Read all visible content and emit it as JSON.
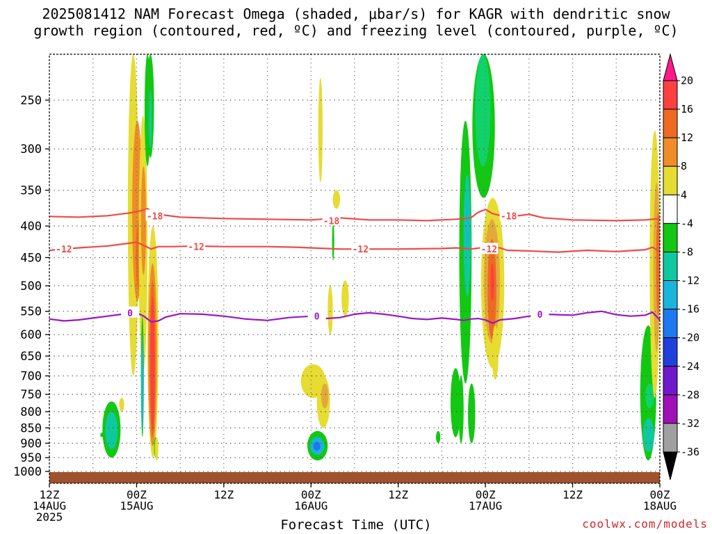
{
  "title": {
    "line1": "2025081412 NAM Forecast Omega (shaded, μbar/s) for KAGR with dendritic snow",
    "line2": "growth region (contoured, red, ºC) and freezing level (contoured, purple, ºC)"
  },
  "credit": "coolwx.com/models",
  "chart_data": {
    "type": "heatmap",
    "xlabel": "Forecast Time (UTC)",
    "ylabel": "",
    "x_ticks": [
      {
        "hour": 0,
        "label1": "12Z",
        "label2": "14AUG",
        "label3": "2025"
      },
      {
        "hour": 12,
        "label1": "00Z",
        "label2": "15AUG",
        "label3": ""
      },
      {
        "hour": 24,
        "label1": "12Z",
        "label2": "",
        "label3": ""
      },
      {
        "hour": 36,
        "label1": "00Z",
        "label2": "16AUG",
        "label3": ""
      },
      {
        "hour": 48,
        "label1": "12Z",
        "label2": "",
        "label3": ""
      },
      {
        "hour": 60,
        "label1": "00Z",
        "label2": "17AUG",
        "label3": ""
      },
      {
        "hour": 72,
        "label1": "12Z",
        "label2": "",
        "label3": ""
      },
      {
        "hour": 84,
        "label1": "00Z",
        "label2": "18AUG",
        "label3": ""
      }
    ],
    "xlim_hours": [
      0,
      84
    ],
    "y_ticks_hPa": [
      250,
      300,
      350,
      400,
      450,
      500,
      550,
      600,
      650,
      700,
      750,
      800,
      850,
      900,
      950,
      1000
    ],
    "ylim_hPa": [
      200,
      1020
    ],
    "y_scale": "log",
    "grid": true,
    "colorbar": {
      "labels": [
        "20",
        "16",
        "12",
        "8",
        "4",
        "-4",
        "-8",
        "-12",
        "-16",
        "-20",
        "-24",
        "-28",
        "-32",
        "-36"
      ],
      "colors": [
        "#ff1a8c",
        "#ff4040",
        "#ee6a20",
        "#f08c28",
        "#e3a83a",
        "#e6dc32",
        "#ffffff",
        "#12c812",
        "#10d26a",
        "#10c8a0",
        "#1ab4dc",
        "#1e78f0",
        "#2040dc",
        "#7018cc",
        "#a010b8",
        "#a0a0a0",
        "#000000"
      ]
    },
    "contour_labels": {
      "dgz_upper": "-18",
      "dgz_lower": "-12",
      "freezing": "0"
    },
    "dgz_upper_line": [
      [
        0,
        386
      ],
      [
        4,
        387
      ],
      [
        8,
        385
      ],
      [
        11,
        381
      ],
      [
        12.5,
        378
      ],
      [
        13.5,
        375
      ],
      [
        15,
        383
      ],
      [
        18,
        387
      ],
      [
        24,
        389
      ],
      [
        30,
        390
      ],
      [
        36,
        391
      ],
      [
        40,
        388
      ],
      [
        44,
        391
      ],
      [
        48,
        391
      ],
      [
        52,
        392
      ],
      [
        56,
        390
      ],
      [
        58,
        388
      ],
      [
        59,
        380
      ],
      [
        60,
        376
      ],
      [
        61,
        382
      ],
      [
        63,
        387
      ],
      [
        66,
        383
      ],
      [
        68,
        388
      ],
      [
        72,
        391
      ],
      [
        78,
        392
      ],
      [
        82,
        391
      ],
      [
        84,
        389
      ]
    ],
    "dgz_lower_line": [
      [
        0,
        438
      ],
      [
        2,
        436
      ],
      [
        4,
        434
      ],
      [
        8,
        431
      ],
      [
        10,
        428
      ],
      [
        12,
        425
      ],
      [
        13,
        430
      ],
      [
        14,
        436
      ],
      [
        15,
        432
      ],
      [
        17,
        432
      ],
      [
        20,
        431
      ],
      [
        24,
        432
      ],
      [
        30,
        432
      ],
      [
        34,
        433
      ],
      [
        36,
        434
      ],
      [
        40,
        436
      ],
      [
        44,
        436
      ],
      [
        48,
        436
      ],
      [
        54,
        435
      ],
      [
        56,
        434
      ],
      [
        58,
        436
      ],
      [
        60,
        433
      ],
      [
        62,
        434
      ],
      [
        63,
        438
      ],
      [
        66,
        439
      ],
      [
        70,
        441
      ],
      [
        74,
        438
      ],
      [
        78,
        440
      ],
      [
        82,
        437
      ],
      [
        83,
        433
      ],
      [
        84,
        440
      ]
    ],
    "freezing_line": [
      [
        0,
        566
      ],
      [
        2,
        570
      ],
      [
        4,
        568
      ],
      [
        6,
        564
      ],
      [
        8,
        560
      ],
      [
        10,
        556
      ],
      [
        12,
        553
      ],
      [
        13,
        560
      ],
      [
        14,
        572
      ],
      [
        15,
        570
      ],
      [
        16,
        562
      ],
      [
        18,
        555
      ],
      [
        21,
        556
      ],
      [
        24,
        560
      ],
      [
        27,
        566
      ],
      [
        30,
        569
      ],
      [
        33,
        563
      ],
      [
        36,
        560
      ],
      [
        38,
        565
      ],
      [
        40,
        563
      ],
      [
        42,
        556
      ],
      [
        44,
        553
      ],
      [
        46,
        556
      ],
      [
        48,
        560
      ],
      [
        50,
        565
      ],
      [
        52,
        567
      ],
      [
        54,
        564
      ],
      [
        56,
        567
      ],
      [
        57,
        569
      ],
      [
        58,
        566
      ],
      [
        59,
        565
      ],
      [
        60,
        568
      ],
      [
        61,
        575
      ],
      [
        62,
        568
      ],
      [
        64,
        565
      ],
      [
        66,
        560
      ],
      [
        68,
        556
      ],
      [
        70,
        557
      ],
      [
        72,
        558
      ],
      [
        74,
        553
      ],
      [
        76,
        550
      ],
      [
        78,
        557
      ],
      [
        80,
        560
      ],
      [
        82,
        558
      ],
      [
        83,
        552
      ],
      [
        84,
        568
      ]
    ],
    "omega_cells": [
      {
        "x0": 10.8,
        "x1": 12.3,
        "p0": 200,
        "p1": 700,
        "value": 6
      },
      {
        "x0": 11.4,
        "x1": 12.8,
        "p0": 270,
        "p1": 530,
        "value": 10
      },
      {
        "x0": 11.9,
        "x1": 12.9,
        "p0": 390,
        "p1": 510,
        "value": 13
      },
      {
        "x0": 12.3,
        "x1": 13.5,
        "p0": 265,
        "p1": 690,
        "value": 6
      },
      {
        "x0": 12.6,
        "x1": 13.3,
        "p0": 320,
        "p1": 480,
        "value": 11
      },
      {
        "x0": 13.1,
        "x1": 13.9,
        "p0": 200,
        "p1": 320,
        "value": -6
      },
      {
        "x0": 13.4,
        "x1": 14.4,
        "p0": 200,
        "p1": 310,
        "value": -7
      },
      {
        "x0": 13.7,
        "x1": 14.1,
        "p0": 240,
        "p1": 300,
        "value": -10
      },
      {
        "x0": 13.5,
        "x1": 15.0,
        "p0": 400,
        "p1": 950,
        "value": 6
      },
      {
        "x0": 13.6,
        "x1": 14.8,
        "p0": 460,
        "p1": 910,
        "value": 10
      },
      {
        "x0": 13.8,
        "x1": 14.6,
        "p0": 490,
        "p1": 880,
        "value": 14
      },
      {
        "x0": 13.9,
        "x1": 14.5,
        "p0": 520,
        "p1": 860,
        "value": 18
      },
      {
        "x0": 12.6,
        "x1": 13.0,
        "p0": 560,
        "p1": 880,
        "value": -6
      },
      {
        "x0": 12.7,
        "x1": 12.9,
        "p0": 600,
        "p1": 860,
        "value": -12
      },
      {
        "x0": 14.4,
        "x1": 14.8,
        "p0": 880,
        "p1": 950,
        "value": -6
      },
      {
        "x0": 7.3,
        "x1": 9.8,
        "p0": 770,
        "p1": 950,
        "value": -6
      },
      {
        "x0": 7.7,
        "x1": 9.4,
        "p0": 800,
        "p1": 920,
        "value": -10
      },
      {
        "x0": 7.0,
        "x1": 7.6,
        "p0": 865,
        "p1": 880,
        "value": -6
      },
      {
        "x0": 9.6,
        "x1": 10.3,
        "p0": 760,
        "p1": 800,
        "value": 5
      },
      {
        "x0": 14.5,
        "x1": 15.0,
        "p0": 880,
        "p1": 960,
        "value": 5
      },
      {
        "x0": 35.5,
        "x1": 38.3,
        "p0": 860,
        "p1": 960,
        "value": -6
      },
      {
        "x0": 35.9,
        "x1": 37.8,
        "p0": 880,
        "p1": 940,
        "value": -12
      },
      {
        "x0": 36.3,
        "x1": 37.3,
        "p0": 895,
        "p1": 925,
        "value": -16
      },
      {
        "x0": 34.6,
        "x1": 38.0,
        "p0": 670,
        "p1": 760,
        "value": 5
      },
      {
        "x0": 36.8,
        "x1": 38.6,
        "p0": 700,
        "p1": 850,
        "value": 6
      },
      {
        "x0": 37.4,
        "x1": 38.4,
        "p0": 720,
        "p1": 790,
        "value": 9
      },
      {
        "x0": 38.3,
        "x1": 39.0,
        "p0": 500,
        "p1": 600,
        "value": 5
      },
      {
        "x0": 40.2,
        "x1": 41.2,
        "p0": 490,
        "p1": 560,
        "value": 5
      },
      {
        "x0": 39.0,
        "x1": 40.0,
        "p0": 350,
        "p1": 375,
        "value": 5
      },
      {
        "x0": 37.0,
        "x1": 37.6,
        "p0": 230,
        "p1": 340,
        "value": 5
      },
      {
        "x0": 38.9,
        "x1": 39.2,
        "p0": 395,
        "p1": 455,
        "value": -6
      },
      {
        "x0": 55.2,
        "x1": 56.6,
        "p0": 680,
        "p1": 880,
        "value": -6
      },
      {
        "x0": 56.4,
        "x1": 58.1,
        "p0": 270,
        "p1": 720,
        "value": -6
      },
      {
        "x0": 57.0,
        "x1": 58.0,
        "p0": 330,
        "p1": 520,
        "value": -10
      },
      {
        "x0": 57.3,
        "x1": 57.7,
        "p0": 360,
        "p1": 440,
        "value": -14
      },
      {
        "x0": 56.3,
        "x1": 57.0,
        "p0": 700,
        "p1": 900,
        "value": -6
      },
      {
        "x0": 57.6,
        "x1": 58.6,
        "p0": 720,
        "p1": 900,
        "value": -6
      },
      {
        "x0": 58.2,
        "x1": 61.3,
        "p0": 200,
        "p1": 360,
        "value": -6
      },
      {
        "x0": 58.6,
        "x1": 60.7,
        "p0": 200,
        "p1": 320,
        "value": -8
      },
      {
        "x0": 59.4,
        "x1": 62.6,
        "p0": 360,
        "p1": 680,
        "value": 6
      },
      {
        "x0": 59.8,
        "x1": 62.0,
        "p0": 390,
        "p1": 620,
        "value": 8
      },
      {
        "x0": 60.3,
        "x1": 61.5,
        "p0": 420,
        "p1": 610,
        "value": 12
      },
      {
        "x0": 60.7,
        "x1": 61.2,
        "p0": 460,
        "p1": 530,
        "value": 17
      },
      {
        "x0": 60.9,
        "x1": 61.8,
        "p0": 580,
        "p1": 710,
        "value": 6
      },
      {
        "x0": 53.2,
        "x1": 53.8,
        "p0": 860,
        "p1": 900,
        "value": -6
      },
      {
        "x0": 81.3,
        "x1": 83.5,
        "p0": 580,
        "p1": 960,
        "value": -6
      },
      {
        "x0": 81.7,
        "x1": 83.2,
        "p0": 820,
        "p1": 930,
        "value": -10
      },
      {
        "x0": 82.0,
        "x1": 83.2,
        "p0": 720,
        "p1": 790,
        "value": -8
      },
      {
        "x0": 82.6,
        "x1": 84.0,
        "p0": 280,
        "p1": 760,
        "value": 5
      },
      {
        "x0": 83.1,
        "x1": 84.0,
        "p0": 340,
        "p1": 640,
        "value": 9
      },
      {
        "x0": 83.5,
        "x1": 84.0,
        "p0": 380,
        "p1": 560,
        "value": 13
      }
    ]
  }
}
